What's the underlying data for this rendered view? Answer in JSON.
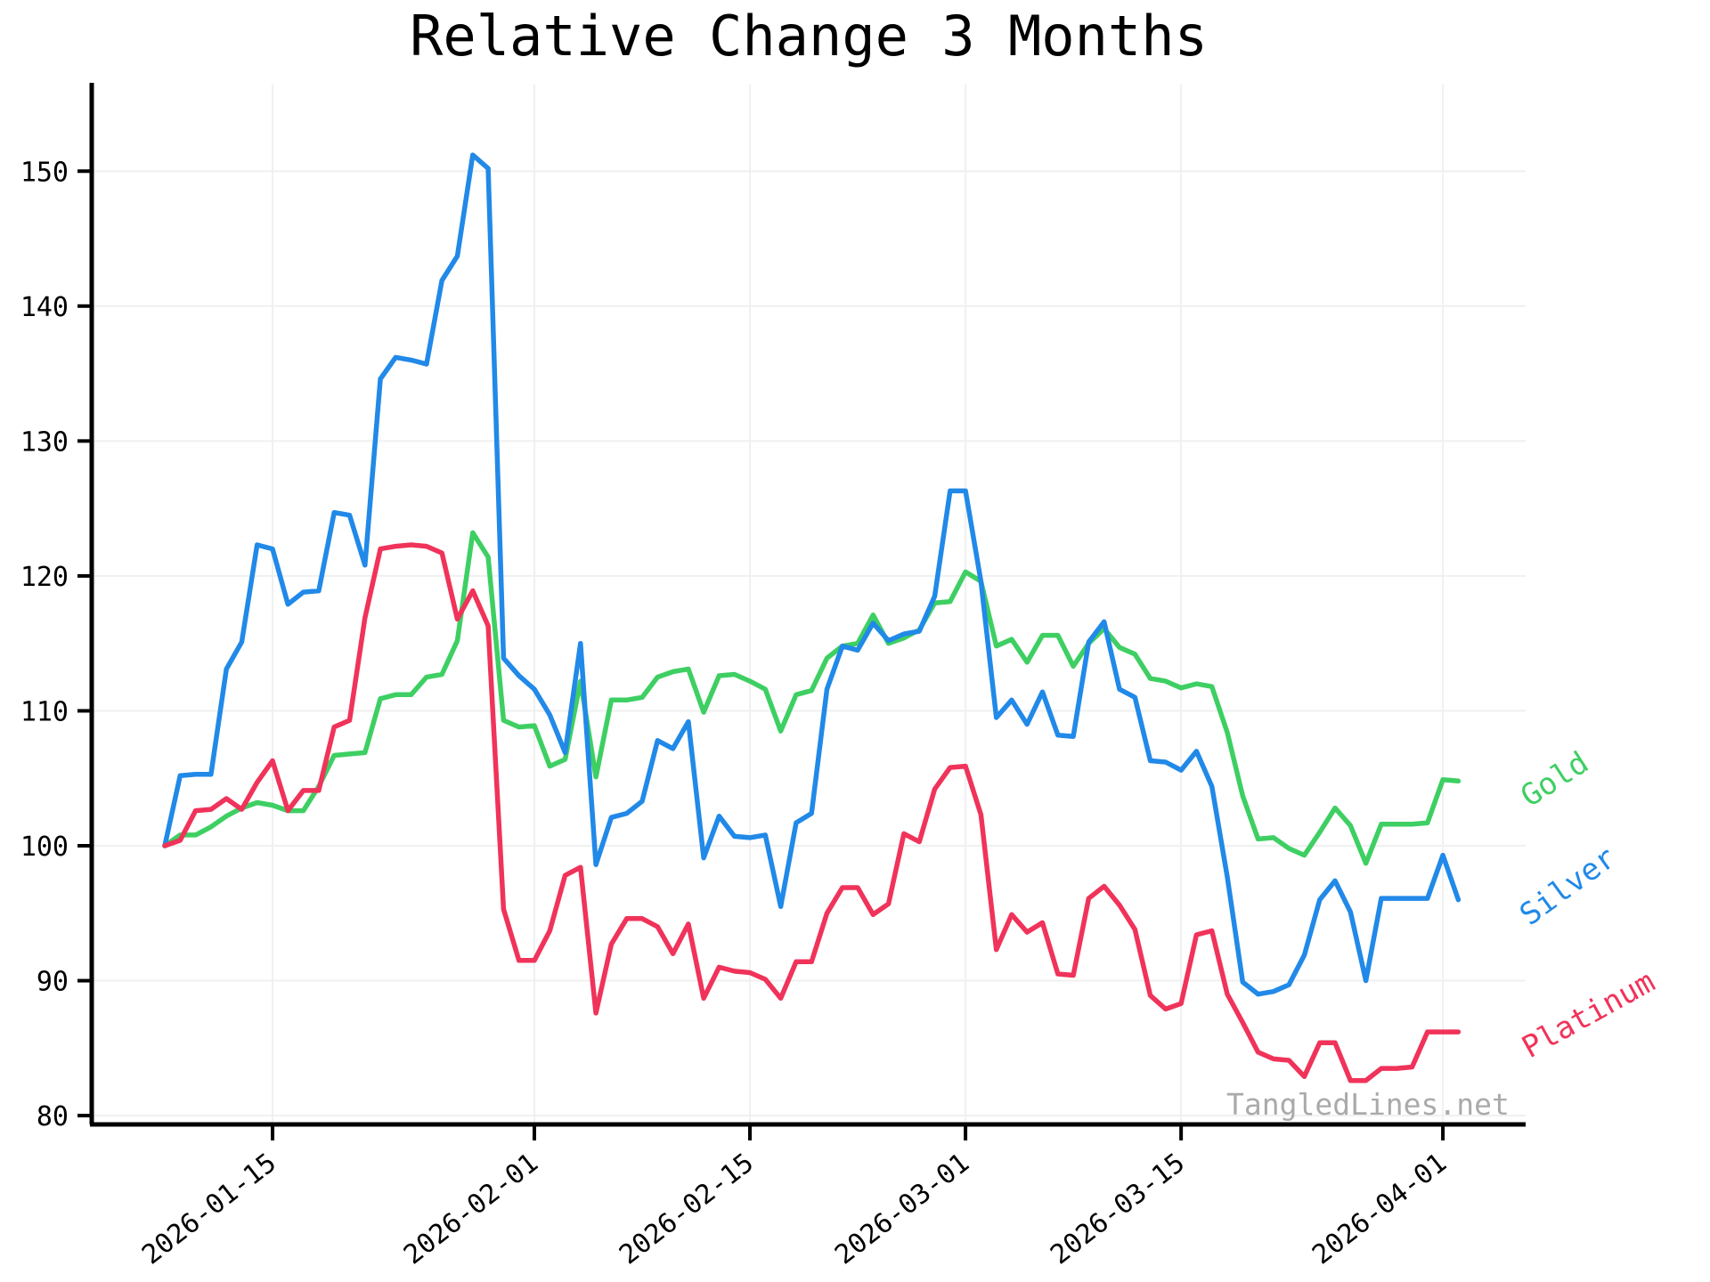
{
  "title": "Relative Change 3 Months",
  "watermark": "TangledLines.net",
  "colors": {
    "gold": "#3ecf63",
    "silver": "#2189e8",
    "platinum": "#f0335a",
    "grid": "#f0f0f0",
    "axis": "#000000",
    "watermark_gray": "#aaaaaa"
  },
  "chart_data": {
    "type": "line",
    "title": "Relative Change 3 Months",
    "xlabel": "",
    "ylabel": "",
    "ylim": [
      79.3,
      156.4
    ],
    "grid": true,
    "legend_position": "line-end-labels-right",
    "y_ticks": [
      80,
      90,
      100,
      110,
      120,
      130,
      140,
      150
    ],
    "x_tick_labels": [
      "2026-01-15",
      "2026-02-01",
      "2026-02-15",
      "2026-03-01",
      "2026-03-15",
      "2026-04-01"
    ],
    "x": [
      "2026-01-08",
      "2026-01-09",
      "2026-01-10",
      "2026-01-11",
      "2026-01-12",
      "2026-01-13",
      "2026-01-14",
      "2026-01-15",
      "2026-01-16",
      "2026-01-17",
      "2026-01-18",
      "2026-01-19",
      "2026-01-20",
      "2026-01-21",
      "2026-01-22",
      "2026-01-23",
      "2026-01-24",
      "2026-01-25",
      "2026-01-26",
      "2026-01-27",
      "2026-01-28",
      "2026-01-29",
      "2026-01-30",
      "2026-01-31",
      "2026-02-01",
      "2026-02-02",
      "2026-02-03",
      "2026-02-04",
      "2026-02-05",
      "2026-02-06",
      "2026-02-07",
      "2026-02-08",
      "2026-02-09",
      "2026-02-10",
      "2026-02-11",
      "2026-02-12",
      "2026-02-13",
      "2026-02-14",
      "2026-02-15",
      "2026-02-16",
      "2026-02-17",
      "2026-02-18",
      "2026-02-19",
      "2026-02-20",
      "2026-02-21",
      "2026-02-22",
      "2026-02-23",
      "2026-02-24",
      "2026-02-25",
      "2026-02-26",
      "2026-02-27",
      "2026-02-28",
      "2026-03-01",
      "2026-03-02",
      "2026-03-03",
      "2026-03-04",
      "2026-03-05",
      "2026-03-06",
      "2026-03-07",
      "2026-03-08",
      "2026-03-09",
      "2026-03-10",
      "2026-03-11",
      "2026-03-12",
      "2026-03-13",
      "2026-03-14",
      "2026-03-15",
      "2026-03-16",
      "2026-03-17",
      "2026-03-18",
      "2026-03-19",
      "2026-03-20",
      "2026-03-21",
      "2026-03-22",
      "2026-03-23",
      "2026-03-24",
      "2026-03-25",
      "2026-03-26",
      "2026-03-27",
      "2026-03-28",
      "2026-03-29",
      "2026-03-30",
      "2026-03-31",
      "2026-04-01",
      "2026-04-02"
    ],
    "series": [
      {
        "name": "Gold",
        "color": "#3ecf63",
        "label_rotation": -33,
        "values": [
          100.0,
          100.8,
          100.8,
          101.4,
          102.2,
          102.8,
          103.2,
          103.0,
          102.6,
          102.6,
          104.4,
          106.7,
          106.8,
          106.9,
          110.9,
          111.2,
          111.2,
          112.5,
          112.7,
          115.2,
          123.2,
          121.4,
          109.3,
          108.8,
          108.9,
          105.9,
          106.4,
          112.2,
          105.1,
          110.8,
          110.8,
          111.0,
          112.5,
          112.9,
          113.1,
          109.9,
          112.6,
          112.7,
          112.2,
          111.6,
          108.5,
          111.2,
          111.5,
          113.9,
          114.8,
          115.0,
          117.1,
          115.0,
          115.4,
          116.0,
          118.0,
          118.1,
          120.3,
          119.6,
          114.8,
          115.3,
          113.6,
          115.6,
          115.6,
          113.3,
          115.0,
          116.1,
          114.7,
          114.2,
          112.4,
          112.2,
          111.7,
          112.0,
          111.8,
          108.4,
          103.7,
          100.5,
          100.6,
          99.8,
          99.3,
          101.0,
          102.8,
          101.5,
          98.7,
          101.6,
          101.6,
          101.6,
          101.7,
          104.9,
          104.8
        ]
      },
      {
        "name": "Silver",
        "color": "#2189e8",
        "label_rotation": -36,
        "values": [
          100.0,
          105.2,
          105.3,
          105.3,
          113.1,
          115.1,
          122.3,
          122.0,
          117.9,
          118.8,
          118.9,
          124.7,
          124.5,
          120.8,
          134.6,
          136.2,
          136.0,
          135.7,
          141.9,
          143.7,
          151.2,
          150.2,
          113.9,
          112.6,
          111.6,
          109.7,
          106.9,
          115.0,
          98.6,
          102.1,
          102.4,
          103.3,
          107.8,
          107.2,
          109.2,
          99.1,
          102.2,
          100.7,
          100.6,
          100.8,
          95.5,
          101.7,
          102.4,
          111.6,
          114.8,
          114.5,
          116.5,
          115.2,
          115.7,
          115.9,
          118.5,
          126.3,
          126.3,
          119.6,
          109.5,
          110.8,
          109.0,
          111.4,
          108.2,
          108.1,
          115.1,
          116.6,
          111.6,
          111.0,
          106.3,
          106.2,
          105.6,
          107.0,
          104.4,
          97.7,
          89.9,
          89.0,
          89.2,
          89.7,
          91.9,
          96.0,
          97.4,
          95.1,
          90.0,
          96.1,
          96.1,
          96.1,
          96.1,
          99.3,
          96.0
        ]
      },
      {
        "name": "Platinum",
        "color": "#f0335a",
        "label_rotation": -29,
        "values": [
          100.0,
          100.4,
          102.6,
          102.7,
          103.5,
          102.7,
          104.7,
          106.3,
          102.6,
          104.1,
          104.1,
          108.8,
          109.3,
          116.9,
          122.0,
          122.2,
          122.3,
          122.2,
          121.7,
          116.8,
          118.9,
          116.3,
          95.3,
          91.5,
          91.5,
          93.7,
          97.8,
          98.4,
          87.6,
          92.7,
          94.6,
          94.6,
          94.0,
          92.0,
          94.2,
          88.7,
          91.0,
          90.7,
          90.6,
          90.1,
          88.7,
          91.4,
          91.4,
          95.0,
          96.9,
          96.9,
          94.9,
          95.7,
          100.9,
          100.3,
          104.2,
          105.8,
          105.9,
          102.3,
          92.3,
          94.9,
          93.6,
          94.3,
          90.5,
          90.4,
          96.1,
          97.0,
          95.6,
          93.8,
          88.9,
          87.9,
          88.3,
          93.4,
          93.7,
          89.0,
          86.9,
          84.7,
          84.2,
          84.1,
          82.9,
          85.4,
          85.4,
          82.6,
          82.6,
          83.5,
          83.5,
          83.6,
          86.2,
          86.2,
          86.2
        ]
      }
    ]
  }
}
